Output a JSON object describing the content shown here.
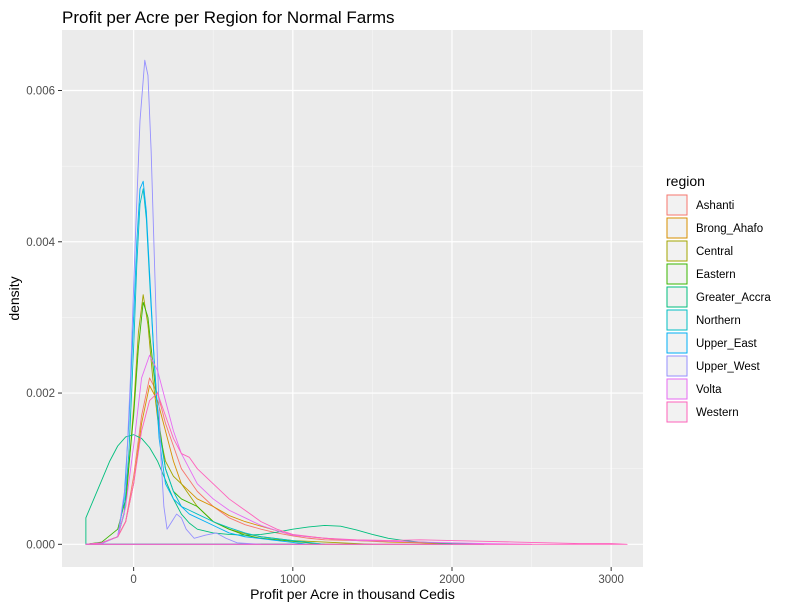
{
  "chart_data": {
    "type": "density",
    "title": "Profit per Acre per Region for Normal Farms",
    "xlabel": "Profit per Acre in thousand Cedis",
    "ylabel": "density",
    "xlim": [
      -450,
      3200
    ],
    "ylim": [
      -0.0003,
      0.0068
    ],
    "x_ticks": [
      0,
      1000,
      2000,
      3000
    ],
    "x_tick_labels": [
      "0",
      "1000",
      "2000",
      "3000"
    ],
    "y_ticks": [
      0.0,
      0.002,
      0.004,
      0.006
    ],
    "y_tick_labels": [
      "0.000",
      "0.002",
      "0.004",
      "0.006"
    ],
    "grid": true,
    "background": "#ebebeb",
    "legend": {
      "title": "region",
      "position": "right"
    },
    "series": [
      {
        "name": "Ashanti",
        "color": "#F8766D",
        "points": [
          [
            -300,
            0
          ],
          [
            -200,
            2e-05
          ],
          [
            -100,
            0.0001
          ],
          [
            -50,
            0.0003
          ],
          [
            0,
            0.0009
          ],
          [
            50,
            0.0017
          ],
          [
            100,
            0.0022
          ],
          [
            150,
            0.002
          ],
          [
            200,
            0.0016
          ],
          [
            250,
            0.0013
          ],
          [
            300,
            0.001
          ],
          [
            350,
            0.00085
          ],
          [
            400,
            0.0007
          ],
          [
            500,
            0.0005
          ],
          [
            600,
            0.00035
          ],
          [
            700,
            0.00026
          ],
          [
            800,
            0.0002
          ],
          [
            900,
            0.00015
          ],
          [
            1000,
            0.00011
          ],
          [
            1100,
            8e-05
          ],
          [
            1200,
            6e-05
          ],
          [
            1400,
            5e-05
          ],
          [
            1600,
            4e-05
          ],
          [
            1800,
            3e-05
          ],
          [
            2000,
            1e-05
          ],
          [
            2200,
            0
          ]
        ]
      },
      {
        "name": "Brong_Ahafo",
        "color": "#D89000",
        "points": [
          [
            -300,
            0
          ],
          [
            -200,
            2e-05
          ],
          [
            -100,
            0.0001
          ],
          [
            -50,
            0.0003
          ],
          [
            0,
            0.0008
          ],
          [
            50,
            0.0016
          ],
          [
            100,
            0.0021
          ],
          [
            150,
            0.0019
          ],
          [
            200,
            0.0015
          ],
          [
            250,
            0.0011
          ],
          [
            300,
            0.0008
          ],
          [
            400,
            0.0006
          ],
          [
            500,
            0.0005
          ],
          [
            600,
            0.00038
          ],
          [
            700,
            0.0003
          ],
          [
            800,
            0.00024
          ],
          [
            900,
            0.00018
          ],
          [
            1000,
            0.00012
          ],
          [
            1200,
            8e-05
          ],
          [
            1400,
            5e-05
          ],
          [
            1600,
            3e-05
          ],
          [
            1800,
            2e-05
          ],
          [
            2000,
            0
          ]
        ]
      },
      {
        "name": "Central",
        "color": "#A3A500",
        "points": [
          [
            -300,
            0
          ],
          [
            -200,
            2e-05
          ],
          [
            -100,
            0.0001
          ],
          [
            -50,
            0.0005
          ],
          [
            0,
            0.0018
          ],
          [
            30,
            0.0028
          ],
          [
            60,
            0.0033
          ],
          [
            90,
            0.0029
          ],
          [
            120,
            0.0022
          ],
          [
            160,
            0.0015
          ],
          [
            200,
            0.0011
          ],
          [
            250,
            0.0009
          ],
          [
            300,
            0.0008
          ],
          [
            350,
            0.00065
          ],
          [
            400,
            0.0005
          ],
          [
            500,
            0.0003
          ],
          [
            600,
            0.0002
          ],
          [
            700,
            0.00014
          ],
          [
            800,
            0.0001
          ],
          [
            1000,
            5e-05
          ],
          [
            1200,
            3e-05
          ],
          [
            1500,
            0
          ]
        ]
      },
      {
        "name": "Eastern",
        "color": "#39B600",
        "points": [
          [
            -300,
            0
          ],
          [
            -200,
            3e-05
          ],
          [
            -100,
            0.0002
          ],
          [
            -50,
            0.0006
          ],
          [
            0,
            0.0017
          ],
          [
            30,
            0.0026
          ],
          [
            60,
            0.0032
          ],
          [
            90,
            0.003
          ],
          [
            120,
            0.0024
          ],
          [
            160,
            0.0016
          ],
          [
            200,
            0.001
          ],
          [
            250,
            0.0007
          ],
          [
            300,
            0.0006
          ],
          [
            400,
            0.0005
          ],
          [
            500,
            0.0003
          ],
          [
            600,
            0.0002
          ],
          [
            700,
            0.00012
          ],
          [
            800,
            8e-05
          ],
          [
            1000,
            4e-05
          ],
          [
            1200,
            0
          ]
        ]
      },
      {
        "name": "Greater_Accra",
        "color": "#00BF7D",
        "points": [
          [
            -300,
            0.00035
          ],
          [
            -250,
            0.0006
          ],
          [
            -200,
            0.00085
          ],
          [
            -150,
            0.0011
          ],
          [
            -100,
            0.0013
          ],
          [
            -50,
            0.00142
          ],
          [
            0,
            0.00145
          ],
          [
            50,
            0.0014
          ],
          [
            100,
            0.00128
          ],
          [
            150,
            0.0011
          ],
          [
            200,
            0.00085
          ],
          [
            250,
            0.0006
          ],
          [
            300,
            0.0004
          ],
          [
            350,
            0.00028
          ],
          [
            400,
            0.0002
          ],
          [
            500,
            0.00015
          ],
          [
            600,
            0.00013
          ],
          [
            700,
            0.00012
          ],
          [
            800,
            0.00013
          ],
          [
            900,
            0.00016
          ],
          [
            1000,
            0.0002
          ],
          [
            1100,
            0.00023
          ],
          [
            1200,
            0.00025
          ],
          [
            1300,
            0.00024
          ],
          [
            1400,
            0.00019
          ],
          [
            1500,
            0.00013
          ],
          [
            1600,
            8e-05
          ],
          [
            1700,
            5e-05
          ],
          [
            1800,
            3e-05
          ],
          [
            2000,
            1e-05
          ],
          [
            2200,
            0
          ]
        ]
      },
      {
        "name": "Northern",
        "color": "#00BFC4",
        "points": [
          [
            -300,
            0
          ],
          [
            -200,
            2e-05
          ],
          [
            -100,
            0.0001
          ],
          [
            -60,
            0.0004
          ],
          [
            -30,
            0.0012
          ],
          [
            0,
            0.0026
          ],
          [
            20,
            0.0037
          ],
          [
            40,
            0.0045
          ],
          [
            60,
            0.0047
          ],
          [
            80,
            0.0043
          ],
          [
            100,
            0.0035
          ],
          [
            130,
            0.0024
          ],
          [
            160,
            0.0015
          ],
          [
            200,
            0.001
          ],
          [
            250,
            0.0007
          ],
          [
            300,
            0.0005
          ],
          [
            350,
            0.00045
          ],
          [
            400,
            0.0004
          ],
          [
            500,
            0.0003
          ],
          [
            600,
            0.00022
          ],
          [
            700,
            0.00015
          ],
          [
            800,
            0.0001
          ],
          [
            1000,
            5e-05
          ],
          [
            1200,
            0
          ]
        ]
      },
      {
        "name": "Upper_East",
        "color": "#00B0F6",
        "points": [
          [
            -300,
            0
          ],
          [
            -200,
            2e-05
          ],
          [
            -100,
            0.0001
          ],
          [
            -60,
            0.0006
          ],
          [
            -30,
            0.0016
          ],
          [
            0,
            0.003
          ],
          [
            20,
            0.004
          ],
          [
            40,
            0.0047
          ],
          [
            60,
            0.0048
          ],
          [
            80,
            0.0044
          ],
          [
            100,
            0.0036
          ],
          [
            130,
            0.0024
          ],
          [
            160,
            0.0014
          ],
          [
            200,
            0.0008
          ],
          [
            250,
            0.0006
          ],
          [
            300,
            0.0005
          ],
          [
            350,
            0.0004
          ],
          [
            400,
            0.00035
          ],
          [
            500,
            0.00025
          ],
          [
            600,
            0.00015
          ],
          [
            700,
            0.0001
          ],
          [
            900,
            5e-05
          ],
          [
            1100,
            0
          ]
        ]
      },
      {
        "name": "Upper_West",
        "color": "#9590FF",
        "points": [
          [
            -300,
            0
          ],
          [
            -200,
            1e-05
          ],
          [
            -100,
            0.0001
          ],
          [
            -50,
            0.0008
          ],
          [
            -20,
            0.0022
          ],
          [
            10,
            0.004
          ],
          [
            40,
            0.0056
          ],
          [
            70,
            0.0064
          ],
          [
            90,
            0.0062
          ],
          [
            110,
            0.0052
          ],
          [
            130,
            0.0038
          ],
          [
            150,
            0.0024
          ],
          [
            170,
            0.0012
          ],
          [
            190,
            0.0005
          ],
          [
            210,
            0.0002
          ],
          [
            240,
            0.0003
          ],
          [
            270,
            0.0004
          ],
          [
            300,
            0.00035
          ],
          [
            330,
            0.0002
          ],
          [
            380,
            8e-05
          ],
          [
            450,
            0.00012
          ],
          [
            520,
            0.00015
          ],
          [
            580,
            8e-05
          ],
          [
            650,
            2e-05
          ],
          [
            800,
            0
          ]
        ]
      },
      {
        "name": "Volta",
        "color": "#E76BF3",
        "points": [
          [
            -300,
            0
          ],
          [
            -200,
            2e-05
          ],
          [
            -100,
            0.0001
          ],
          [
            -50,
            0.0005
          ],
          [
            0,
            0.0013
          ],
          [
            50,
            0.0022
          ],
          [
            100,
            0.0025
          ],
          [
            150,
            0.0023
          ],
          [
            200,
            0.0019
          ],
          [
            250,
            0.0015
          ],
          [
            300,
            0.0012
          ],
          [
            350,
            0.001
          ],
          [
            400,
            0.0008
          ],
          [
            500,
            0.0006
          ],
          [
            600,
            0.00045
          ],
          [
            700,
            0.00035
          ],
          [
            800,
            0.00025
          ],
          [
            900,
            0.00018
          ],
          [
            1000,
            0.00012
          ],
          [
            1200,
            8e-05
          ],
          [
            1400,
            5e-05
          ],
          [
            1600,
            4e-05
          ],
          [
            1800,
            3e-05
          ],
          [
            2000,
            2e-05
          ],
          [
            2200,
            1e-05
          ],
          [
            2500,
            0
          ]
        ]
      },
      {
        "name": "Western",
        "color": "#FF62BC",
        "points": [
          [
            -300,
            0
          ],
          [
            -200,
            2e-05
          ],
          [
            -100,
            0.0001
          ],
          [
            -50,
            0.0003
          ],
          [
            0,
            0.0008
          ],
          [
            50,
            0.0015
          ],
          [
            100,
            0.0019
          ],
          [
            150,
            0.002
          ],
          [
            200,
            0.0017
          ],
          [
            250,
            0.0014
          ],
          [
            300,
            0.0012
          ],
          [
            350,
            0.00115
          ],
          [
            400,
            0.001
          ],
          [
            500,
            0.0008
          ],
          [
            600,
            0.0006
          ],
          [
            700,
            0.00045
          ],
          [
            800,
            0.0003
          ],
          [
            900,
            0.0002
          ],
          [
            1000,
            0.00013
          ],
          [
            1200,
            8e-05
          ],
          [
            1400,
            6e-05
          ],
          [
            1600,
            5e-05
          ],
          [
            1800,
            6e-05
          ],
          [
            2000,
            5e-05
          ],
          [
            2200,
            4e-05
          ],
          [
            2400,
            3e-05
          ],
          [
            2600,
            2e-05
          ],
          [
            2800,
            1e-05
          ],
          [
            3000,
            1e-05
          ],
          [
            3100,
            0
          ]
        ]
      }
    ]
  }
}
